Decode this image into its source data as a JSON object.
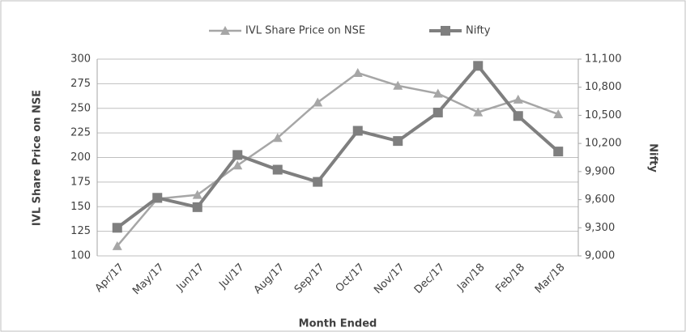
{
  "chart_data": {
    "type": "line",
    "x_label": "Month Ended",
    "y_label": "IVL Share Price on NSE",
    "y2_label": "Nifty",
    "categories": [
      "Apr/17",
      "May/17",
      "Jun/17",
      "Jul/17",
      "Aug/17",
      "Sep/17",
      "Oct/17",
      "Nov/17",
      "Dec/17",
      "Jan/18",
      "Feb/18",
      "Mar/18"
    ],
    "series": [
      {
        "name": "IVL Share Price on NSE",
        "color": "#a6a6a6",
        "marker": "triangle",
        "axis": "y",
        "values": [
          110,
          158,
          162,
          192,
          220,
          256,
          286,
          273,
          265,
          246,
          259,
          244
        ]
      },
      {
        "name": "Nifty",
        "color": "#7f7f7f",
        "marker": "square",
        "axis": "y2",
        "values": [
          9300,
          9620,
          9520,
          10077,
          9920,
          9790,
          10335,
          10226,
          10530,
          11028,
          10493,
          10114
        ]
      }
    ],
    "ylim": [
      100,
      300
    ],
    "yticks": [
      100,
      125,
      150,
      175,
      200,
      225,
      250,
      275,
      300
    ],
    "y2lim": [
      9000,
      11100
    ],
    "y2ticks": [
      {
        "value": 9000,
        "label": "9,000"
      },
      {
        "value": 9300,
        "label": "9,300"
      },
      {
        "value": 9600,
        "label": "9,600"
      },
      {
        "value": 9900,
        "label": "9,900"
      },
      {
        "value": 10200,
        "label": "10,200"
      },
      {
        "value": 10500,
        "label": "10,500"
      },
      {
        "value": 10800,
        "label": "10,800"
      },
      {
        "value": 11100,
        "label": "11,100"
      }
    ],
    "grid": true,
    "legend": "top"
  }
}
